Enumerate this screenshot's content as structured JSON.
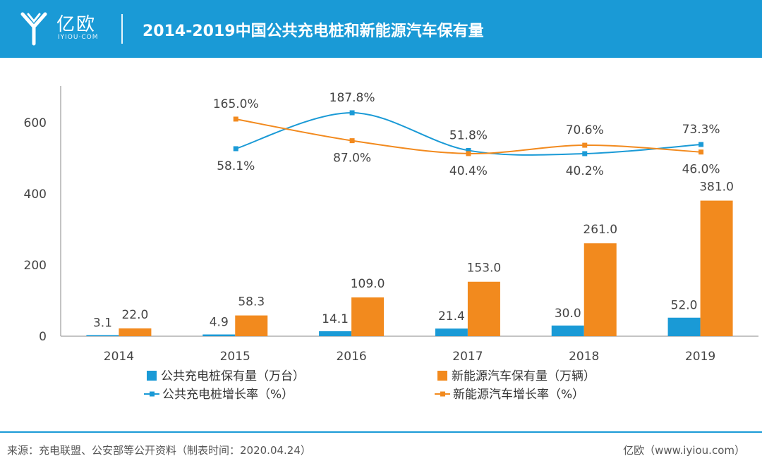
{
  "header": {
    "logo_name": "亿欧",
    "logo_sub": "IYIOU·COM",
    "title": "2014-2019中国公共充电桩和新能源汽车保有量"
  },
  "footer": {
    "source": "来源：充电联盟、公安部等公开资料（制表时间：2020.04.24）",
    "brand": "亿欧（www.iyiou.com）"
  },
  "colors": {
    "blue": "#1a9ad6",
    "orange": "#f28a1e"
  },
  "chart_data": {
    "type": "bar",
    "categories": [
      "2014",
      "2015",
      "2016",
      "2017",
      "2018",
      "2019"
    ],
    "ylim": [
      0,
      700
    ],
    "yticks": [
      0,
      200,
      400,
      600
    ],
    "series": [
      {
        "name": "公共充电桩保有量（万台）",
        "type": "bar",
        "values": [
          3.1,
          4.9,
          14.1,
          21.4,
          30.0,
          52.0
        ],
        "labels": [
          "3.1",
          "4.9",
          "14.1",
          "21.4",
          "30.0",
          "52.0"
        ]
      },
      {
        "name": "新能源汽车保有量（万辆）",
        "type": "bar",
        "values": [
          22.0,
          58.3,
          109.0,
          153.0,
          261.0,
          381.0
        ],
        "labels": [
          "22.0",
          "58.3",
          "109.0",
          "153.0",
          "261.0",
          "381.0"
        ]
      },
      {
        "name": "公共充电桩增长率（%）",
        "type": "line",
        "values": [
          null,
          58.1,
          187.8,
          51.8,
          40.2,
          73.3
        ],
        "labels": [
          "",
          "58.1%",
          "187.8%",
          "51.8%",
          "40.2%",
          "73.3%"
        ]
      },
      {
        "name": "新能源汽车增长率（%）",
        "type": "line",
        "values": [
          null,
          165.0,
          87.0,
          40.4,
          70.6,
          46.0
        ],
        "labels": [
          "",
          "165.0%",
          "87.0%",
          "40.4%",
          "70.6%",
          "46.0%"
        ]
      }
    ],
    "legend": "bottom",
    "grid": false
  }
}
